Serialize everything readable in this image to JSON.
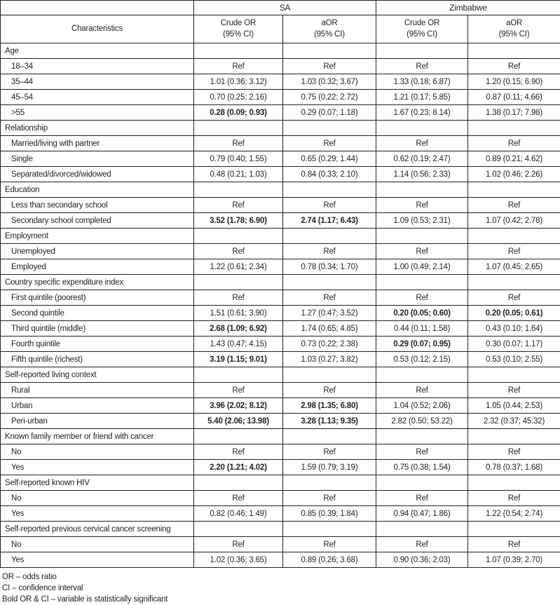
{
  "colors": {
    "border": "#231f20",
    "text": "#231f20",
    "background": "#ffffff"
  },
  "header": {
    "group_sa": "SA",
    "group_zimbabwe": "Zimbabwe",
    "characteristics": "Characteristics",
    "sa_crude": "Crude OR\n(95% CI)",
    "sa_aor": "aOR\n(95% CI)",
    "zw_crude": "Crude OR\n(95% CI)",
    "zw_aor": "aOR\n(95% CI)"
  },
  "table": {
    "sections": [
      {
        "label": "Age",
        "rows": [
          {
            "label": "18–34",
            "values": [
              "Ref",
              "Ref",
              "Ref",
              "Ref"
            ],
            "bold": [
              0,
              0,
              0,
              0
            ]
          },
          {
            "label": "35–44",
            "values": [
              "1.01 (0.36; 3.12)",
              "1.03 (0.32; 3.67)",
              "1.33 (0.18; 6.87)",
              "1.20 (0.15; 6.90)"
            ],
            "bold": [
              0,
              0,
              0,
              0
            ]
          },
          {
            "label": "45–54",
            "values": [
              "0.70 (0.25; 2.16)",
              "0.75 (0.22; 2.72)",
              "1.21 (0.17; 5.85)",
              "0.87 (0.11; 4.66)"
            ],
            "bold": [
              0,
              0,
              0,
              0
            ]
          },
          {
            "label": ">55",
            "values": [
              "0.28 (0.09; 0.93)",
              "0.29 (0.07; 1.18)",
              "1.67 (0.23; 8.14)",
              "1.38 (0.17; 7.98)"
            ],
            "bold": [
              1,
              0,
              0,
              0
            ]
          }
        ]
      },
      {
        "label": "Relationship",
        "rows": [
          {
            "label": "Married/living with partner",
            "values": [
              "Ref",
              "Ref",
              "Ref",
              "Ref"
            ],
            "bold": [
              0,
              0,
              0,
              0
            ]
          },
          {
            "label": "Single",
            "values": [
              "0.79 (0.40; 1.55)",
              "0.65 (0.29; 1.44)",
              "0.62 (0.19; 2.47)",
              "0.89 (0.21; 4.62)"
            ],
            "bold": [
              0,
              0,
              0,
              0
            ]
          },
          {
            "label": "Separated/divorced/widowed",
            "values": [
              "0.48 (0.21; 1.03)",
              "0.84 (0.33; 2.10)",
              "1.14 (0.56; 2.33)",
              "1.02 (0.46; 2.26)"
            ],
            "bold": [
              0,
              0,
              0,
              0
            ]
          }
        ]
      },
      {
        "label": "Education",
        "rows": [
          {
            "label": "Less than secondary school",
            "values": [
              "Ref",
              "Ref",
              "Ref",
              "Ref"
            ],
            "bold": [
              0,
              0,
              0,
              0
            ]
          },
          {
            "label": "Secondary school completed",
            "values": [
              "3.52 (1.78; 6.90)",
              "2.74 (1.17; 6.43)",
              "1.09 (0.53; 2.31)",
              "1.07 (0.42; 2.78)"
            ],
            "bold": [
              1,
              1,
              0,
              0
            ]
          }
        ]
      },
      {
        "label": "Employment",
        "rows": [
          {
            "label": "Unemployed",
            "values": [
              "Ref",
              "Ref",
              "Ref",
              "Ref"
            ],
            "bold": [
              0,
              0,
              0,
              0
            ]
          },
          {
            "label": "Employed",
            "values": [
              "1.22 (0.61; 2.34)",
              "0.78 (0.34; 1.70)",
              "1.00 (0.49; 2.14)",
              "1.07 (0.45; 2.65)"
            ],
            "bold": [
              0,
              0,
              0,
              0
            ]
          }
        ]
      },
      {
        "label": "Country specific expenditure index",
        "rows": [
          {
            "label": "First quintile (poorest)",
            "values": [
              "Ref",
              "Ref",
              "Ref",
              "Ref"
            ],
            "bold": [
              0,
              0,
              0,
              0
            ]
          },
          {
            "label": "Second quintile",
            "values": [
              "1.51 (0.61; 3.90)",
              "1.27 (0.47; 3.52)",
              "0.20 (0.05; 0.60)",
              "0.20 (0.05; 0.61)"
            ],
            "bold": [
              0,
              0,
              1,
              1
            ]
          },
          {
            "label": "Third quintile (middle)",
            "values": [
              "2.68 (1.09; 6.92)",
              "1.74 (0.65; 4.85)",
              "0.44 (0.11; 1.58)",
              "0.43 (0.10; 1.64)"
            ],
            "bold": [
              1,
              0,
              0,
              0
            ]
          },
          {
            "label": "Fourth quintile",
            "values": [
              "1.43 (0.47; 4.15)",
              "0.73 (0.22; 2.38)",
              "0.29 (0.07; 0.95)",
              "0.30 (0.07; 1.17)"
            ],
            "bold": [
              0,
              0,
              1,
              0
            ]
          },
          {
            "label": "Fifth quintile (richest)",
            "values": [
              "3.19 (1.15; 9.01)",
              "1.03 (0.27; 3.82)",
              "0.53 (0.12; 2.15)",
              "0.53 (0.10; 2.55)"
            ],
            "bold": [
              1,
              0,
              0,
              0
            ]
          }
        ]
      },
      {
        "label": "Self-reported living context",
        "rows": [
          {
            "label": "Rural",
            "values": [
              "Ref",
              "Ref",
              "Ref",
              "Ref"
            ],
            "bold": [
              0,
              0,
              0,
              0
            ]
          },
          {
            "label": "Urban",
            "values": [
              "3.96 (2.02; 8.12)",
              "2.98 (1.35; 6.80)",
              "1.04 (0.52; 2.06)",
              "1.05 (0.44; 2.53)"
            ],
            "bold": [
              1,
              1,
              0,
              0
            ]
          },
          {
            "label": "Peri-urban",
            "values": [
              "5.40 (2.06; 13.98)",
              "3.28 (1.13; 9.35)",
              "2.82 (0.50; 53.22)",
              "2.32 (0.37; 45.32)"
            ],
            "bold": [
              1,
              1,
              0,
              0
            ]
          }
        ]
      },
      {
        "label": "Known family member or friend with cancer",
        "rows": [
          {
            "label": "No",
            "values": [
              "Ref",
              "Ref",
              "Ref",
              "Ref"
            ],
            "bold": [
              0,
              0,
              0,
              0
            ]
          },
          {
            "label": "Yes",
            "values": [
              "2.20 (1.21; 4.02)",
              "1.59 (0.79; 3.19)",
              "0.75 (0.38; 1.54)",
              "0.78 (0.37; 1.68)"
            ],
            "bold": [
              1,
              0,
              0,
              0
            ]
          }
        ]
      },
      {
        "label": "Self-reported known HIV",
        "rows": [
          {
            "label": "No",
            "values": [
              "Ref",
              "Ref",
              "Ref",
              "Ref"
            ],
            "bold": [
              0,
              0,
              0,
              0
            ]
          },
          {
            "label": "Yes",
            "values": [
              "0.82 (0.46; 1.49)",
              "0.85 (0.39; 1.84)",
              "0.94 (0.47; 1.86)",
              "1.22 (0.54; 2.74)"
            ],
            "bold": [
              0,
              0,
              0,
              0
            ]
          }
        ]
      },
      {
        "label": "Self-reported previous cervical cancer screening",
        "rows": [
          {
            "label": "No",
            "values": [
              "Ref",
              "Ref",
              "Ref",
              "Ref"
            ],
            "bold": [
              0,
              0,
              0,
              0
            ]
          },
          {
            "label": "Yes",
            "values": [
              "1.02 (0.36; 3.65)",
              "0.89 (0.26; 3.68)",
              "0.90 (0.36; 2.03)",
              "1.07 (0.39; 2.70)"
            ],
            "bold": [
              0,
              0,
              0,
              0
            ]
          }
        ]
      }
    ]
  },
  "footnotes": {
    "or": "OR – odds ratio",
    "ci": "CI – confidence interval",
    "bold": "Bold OR & CI – variable is statistically significant"
  }
}
